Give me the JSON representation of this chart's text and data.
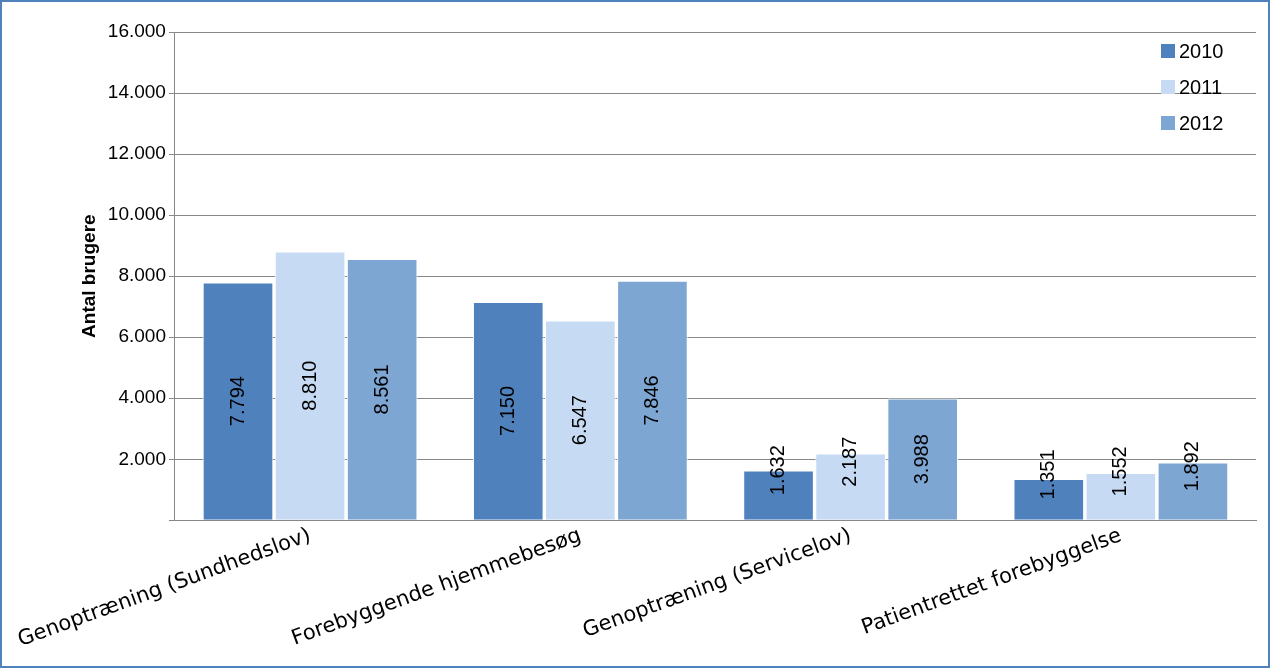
{
  "chart_data": {
    "type": "bar",
    "ylabel": "Antal brugere",
    "categories": [
      "Genoptræning (Sundhedslov)",
      "Forebyggende hjemmebesøg",
      "Genoptræning (Servicelov)",
      "Patientrettet forebyggelse"
    ],
    "series": [
      {
        "name": "2010",
        "color": "#4f81bd",
        "values": [
          7794,
          7150,
          1632,
          1351
        ],
        "value_labels": [
          "7.794",
          "7.150",
          "1.632",
          "1.351"
        ]
      },
      {
        "name": "2011",
        "color": "#c6dbf3",
        "values": [
          8810,
          6547,
          2187,
          1552
        ],
        "value_labels": [
          "8.810",
          "6.547",
          "2.187",
          "1.552"
        ]
      },
      {
        "name": "2012",
        "color": "#7ea6d3",
        "values": [
          8561,
          7846,
          3988,
          1892
        ],
        "value_labels": [
          "8.561",
          "7.846",
          "3.988",
          "1.892"
        ]
      }
    ],
    "ylim": [
      0,
      16000
    ],
    "yticks": [
      {
        "value": 0,
        "label": null
      },
      {
        "value": 2000,
        "label": "2.000"
      },
      {
        "value": 4000,
        "label": "4.000"
      },
      {
        "value": 6000,
        "label": "6.000"
      },
      {
        "value": 8000,
        "label": "8.000"
      },
      {
        "value": 10000,
        "label": "10.000"
      },
      {
        "value": 12000,
        "label": "12.000"
      },
      {
        "value": 14000,
        "label": "14.000"
      },
      {
        "value": 16000,
        "label": "16.000"
      }
    ],
    "grid": "y",
    "legend": "top right"
  }
}
